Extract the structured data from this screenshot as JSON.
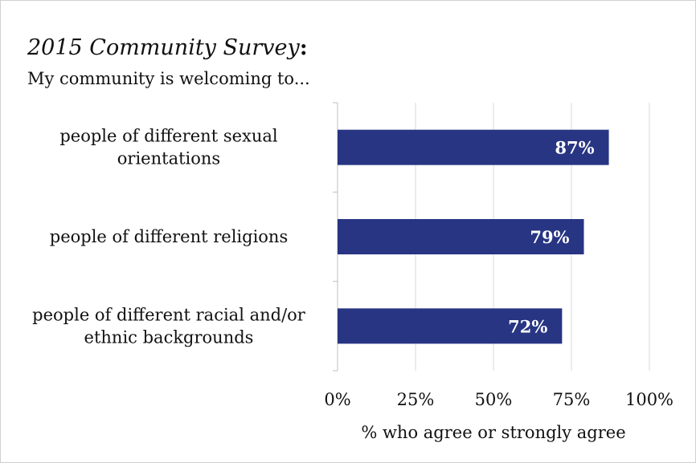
{
  "chart_data": {
    "type": "bar",
    "orientation": "horizontal",
    "title_main": "2015 Community Survey",
    "title_suffix": ":",
    "subtitle": "My community is welcoming to...",
    "categories": [
      [
        "people of different sexual",
        "orientations"
      ],
      [
        "people of different religions"
      ],
      [
        "people of different racial and/or",
        "ethnic backgrounds"
      ]
    ],
    "values": [
      87,
      79,
      72
    ],
    "data_labels": [
      "87%",
      "79%",
      "72%"
    ],
    "xlabel": "% who agree or strongly agree",
    "xlim": [
      0,
      100
    ],
    "xticks": [
      0,
      25,
      50,
      75,
      100
    ],
    "xtick_labels": [
      "0%",
      "25%",
      "50%",
      "75%",
      "100%"
    ],
    "grid": true,
    "legend": "none",
    "bar_color": "#283583",
    "label_color": "#ffffff",
    "grid_color": "#d9d9d9"
  }
}
